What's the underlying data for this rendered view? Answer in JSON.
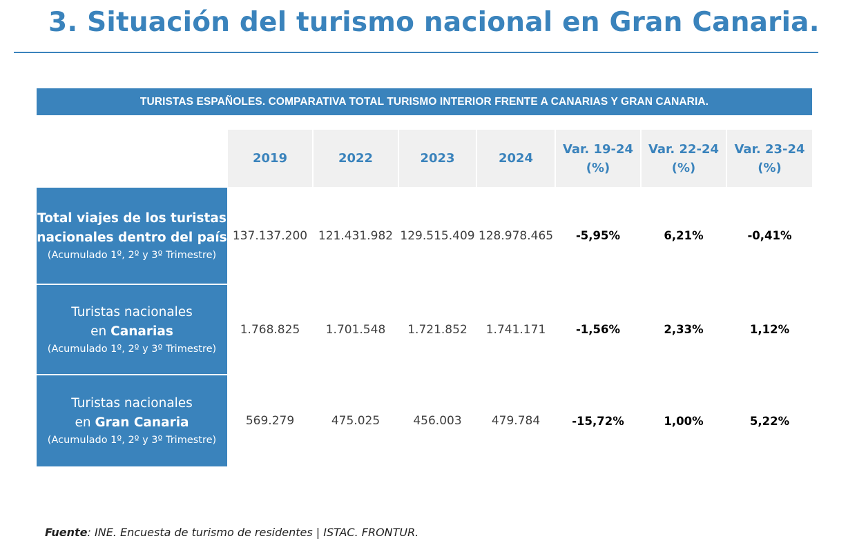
{
  "page": {
    "title": "3. Situación del turismo nacional en Gran Canaria."
  },
  "table": {
    "banner": "TURISTAS ESPAÑOLES. COMPARATIVA TOTAL TURISMO INTERIOR FRENTE A CANARIAS Y GRAN CANARIA.",
    "columns": [
      {
        "line1": "2019",
        "line2": ""
      },
      {
        "line1": "2022",
        "line2": ""
      },
      {
        "line1": "2023",
        "line2": ""
      },
      {
        "line1": "2024",
        "line2": ""
      },
      {
        "line1": "Var. 19-24",
        "line2": "(%)"
      },
      {
        "line1": "Var. 22-24",
        "line2": "(%)"
      },
      {
        "line1": "Var. 23-24",
        "line2": "(%)"
      }
    ],
    "rows": [
      {
        "label_line1": "Total viajes de los turistas",
        "label_line2": "nacionales dentro del país",
        "label_sub": "(Acumulado 1º, 2º y 3º Trimestre)",
        "values": [
          "137.137.200",
          "121.431.982",
          "129.515.409",
          "128.978.465",
          "-5,95%",
          "6,21%",
          "-0,41%"
        ]
      },
      {
        "label_line1": "Turistas nacionales",
        "label_line2_prefix": "en ",
        "label_line2_strong": "Canarias",
        "label_sub": "(Acumulado 1º, 2º y 3º Trimestre)",
        "values": [
          "1.768.825",
          "1.701.548",
          "1.721.852",
          "1.741.171",
          "-1,56%",
          "2,33%",
          "1,12%"
        ]
      },
      {
        "label_line1": "Turistas nacionales",
        "label_line2_prefix": "en ",
        "label_line2_strong": "Gran Canaria",
        "label_sub": "(Acumulado 1º, 2º y 3º Trimestre)",
        "values": [
          "569.279",
          "475.025",
          "456.003",
          "479.784",
          "-15,72%",
          "1,00%",
          "5,22%"
        ]
      }
    ]
  },
  "source": {
    "label": "Fuente",
    "text": ": INE. Encuesta de turismo de residentes | ISTAC. FRONTUR."
  },
  "colors": {
    "accent": "#3a83bc",
    "header_bg": "#f0f0f0"
  }
}
